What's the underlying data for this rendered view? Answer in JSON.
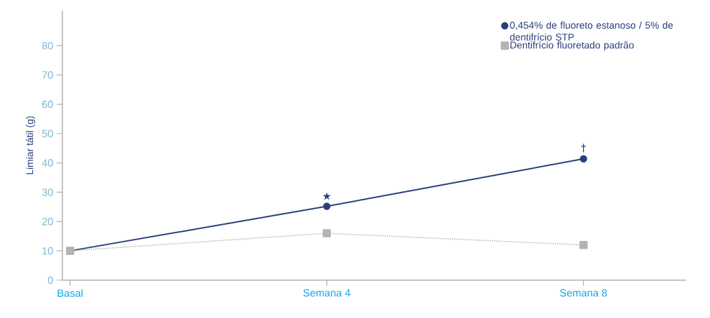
{
  "chart_data": {
    "type": "line",
    "ylabel": "Limiar tátil (g)",
    "categories": [
      "Basal",
      "Semana 4",
      "Semana 8"
    ],
    "series": [
      {
        "name": "0,454% de fluoreto estanoso / 5% de dentifrício STP",
        "color": "#2b3f7e",
        "values": [
          10,
          25.2,
          41.4
        ],
        "marker": "circle",
        "line_style": "solid"
      },
      {
        "name": "Dentifrício fluoretado padrão",
        "color": "#b3b3b3",
        "values": [
          10,
          16,
          12
        ],
        "marker": "square",
        "line_style": "dotted"
      }
    ],
    "ylim": [
      0,
      92
    ],
    "yticks": [
      0,
      10,
      20,
      30,
      40,
      50,
      60,
      70,
      80
    ],
    "annotations": [
      "★",
      "†"
    ],
    "grid": false,
    "legend": "top right"
  }
}
